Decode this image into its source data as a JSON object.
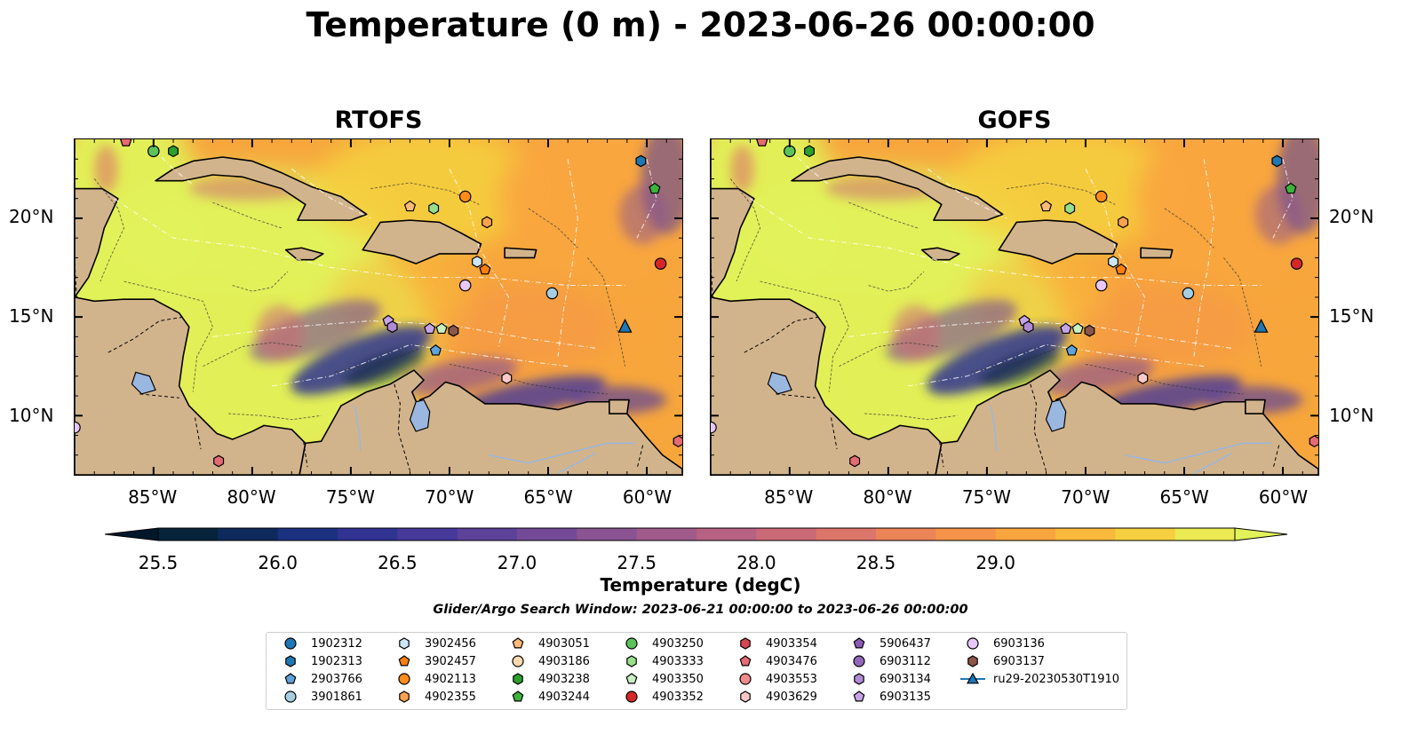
{
  "title": "Temperature (0 m) - 2023-06-26 00:00:00",
  "panels": [
    {
      "title": "RTOFS"
    },
    {
      "title": "GOFS"
    }
  ],
  "axes": {
    "lon_ticks": [
      "85°W",
      "80°W",
      "75°W",
      "70°W",
      "65°W",
      "60°W"
    ],
    "lat_ticks": [
      "20°N",
      "15°N",
      "10°N"
    ]
  },
  "colorbar": {
    "label": "Temperature (degC)",
    "tick_labels": [
      "25.5",
      "26.0",
      "26.5",
      "27.0",
      "27.5",
      "28.0",
      "28.5",
      "29.0"
    ],
    "colors": [
      "#06233a",
      "#0e2a5c",
      "#1c3080",
      "#303391",
      "#46399a",
      "#5c4299",
      "#734a98",
      "#8a5392",
      "#a05b8b",
      "#b76282",
      "#cb6a77",
      "#dc756a",
      "#eb8457",
      "#f59448",
      "#f9a53e",
      "#f9b93c",
      "#f5cf3f",
      "#ecea52"
    ],
    "under_color": "#03172a",
    "over_color": "#e2f25a"
  },
  "subtitle": "Glider/Argo Search Window: 2023-06-21 00:00:00 to 2023-06-26 00:00:00",
  "land_color": "#d2b48c",
  "legend": [
    {
      "label": "1902312",
      "marker": "circle",
      "color": "#1f77b4"
    },
    {
      "label": "1902313",
      "marker": "hexagon",
      "color": "#1f77b4"
    },
    {
      "label": "2903766",
      "marker": "pentagon",
      "color": "#5fa2dd"
    },
    {
      "label": "3901861",
      "marker": "circle",
      "color": "#a6cee3"
    },
    {
      "label": "3902456",
      "marker": "hexagon",
      "color": "#cde6f8"
    },
    {
      "label": "3902457",
      "marker": "pentagon",
      "color": "#ff7f0e"
    },
    {
      "label": "4902113",
      "marker": "circle",
      "color": "#ff8c1a"
    },
    {
      "label": "4902355",
      "marker": "hexagon",
      "color": "#ffa24d"
    },
    {
      "label": "4903051",
      "marker": "pentagon",
      "color": "#ffbb78"
    },
    {
      "label": "4903186",
      "marker": "circle",
      "color": "#ffd9b0"
    },
    {
      "label": "4903238",
      "marker": "hexagon",
      "color": "#2ca02c"
    },
    {
      "label": "4903244",
      "marker": "pentagon",
      "color": "#3cb43c"
    },
    {
      "label": "4903250",
      "marker": "circle",
      "color": "#5cc35c"
    },
    {
      "label": "4903333",
      "marker": "hexagon",
      "color": "#98df8a"
    },
    {
      "label": "4903350",
      "marker": "pentagon",
      "color": "#c8f0c0"
    },
    {
      "label": "4903352",
      "marker": "circle",
      "color": "#d62728"
    },
    {
      "label": "4903354",
      "marker": "hexagon",
      "color": "#d64550"
    },
    {
      "label": "4903476",
      "marker": "pentagon",
      "color": "#e46a73"
    },
    {
      "label": "4903553",
      "marker": "circle",
      "color": "#f08c8c"
    },
    {
      "label": "4903629",
      "marker": "hexagon",
      "color": "#ffc8c8"
    },
    {
      "label": "5906437",
      "marker": "pentagon",
      "color": "#8c5bb8"
    },
    {
      "label": "6903112",
      "marker": "circle",
      "color": "#9467bd"
    },
    {
      "label": "6903134",
      "marker": "hexagon",
      "color": "#b08ad6"
    },
    {
      "label": "6903135",
      "marker": "pentagon",
      "color": "#c5a5e8"
    },
    {
      "label": "6903136",
      "marker": "circle",
      "color": "#e8c8f8"
    },
    {
      "label": "6903137",
      "marker": "hexagon",
      "color": "#8c564b"
    },
    {
      "label": "ru29-20230530T1910",
      "marker": "triangle-line",
      "color": "#1f77b4"
    }
  ]
}
